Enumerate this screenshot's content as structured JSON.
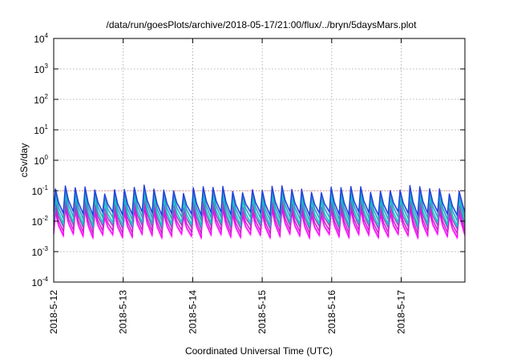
{
  "chart_data": {
    "type": "line",
    "title": "/data/run/goesPlots/archive/2018-05-17/21:00/flux/../bryn/5daysMars.plot",
    "xlabel": "Coordinated Universal Time (UTC)",
    "ylabel": "cSv/day",
    "y_scale": "log",
    "ylim": [
      0.0001,
      10000
    ],
    "y_ticks": [
      {
        "base": "10",
        "exp": "-4",
        "value": 0.0001
      },
      {
        "base": "10",
        "exp": "-3",
        "value": 0.001
      },
      {
        "base": "10",
        "exp": "-2",
        "value": 0.01
      },
      {
        "base": "10",
        "exp": "-1",
        "value": 0.1
      },
      {
        "base": "10",
        "exp": "0",
        "value": 1
      },
      {
        "base": "10",
        "exp": "1",
        "value": 10
      },
      {
        "base": "10",
        "exp": "2",
        "value": 100
      },
      {
        "base": "10",
        "exp": "3",
        "value": 1000
      },
      {
        "base": "10",
        "exp": "4",
        "value": 10000
      }
    ],
    "xlim": [
      "2018-05-12 00:00",
      "2018-05-17 22:00"
    ],
    "x_ticks": [
      {
        "label": "2018-5-12",
        "value": "2018-05-12"
      },
      {
        "label": "2018-5-13",
        "value": "2018-05-13"
      },
      {
        "label": "2018-5-14",
        "value": "2018-05-14"
      },
      {
        "label": "2018-5-15",
        "value": "2018-05-15"
      },
      {
        "label": "2018-5-16",
        "value": "2018-05-16"
      },
      {
        "label": "2018-5-17",
        "value": "2018-05-17"
      }
    ],
    "grid": true,
    "reference_line": {
      "value": 0.1,
      "color": "#e05050"
    },
    "sawtooth_period_hours": 3.4,
    "series": [
      {
        "color": "#2040e0",
        "peak": 0.115,
        "trough": 0.018
      },
      {
        "color": "#30a0c0",
        "peak": 0.085,
        "trough": 0.012
      },
      {
        "color": "#00c8c8",
        "peak": 0.06,
        "trough": 0.008
      },
      {
        "color": "#a040c0",
        "peak": 0.04,
        "trough": 0.0065
      },
      {
        "color": "#d020d0",
        "peak": 0.028,
        "trough": 0.0045
      },
      {
        "color": "#ff00ff",
        "peak": 0.02,
        "trough": 0.0033
      }
    ]
  }
}
